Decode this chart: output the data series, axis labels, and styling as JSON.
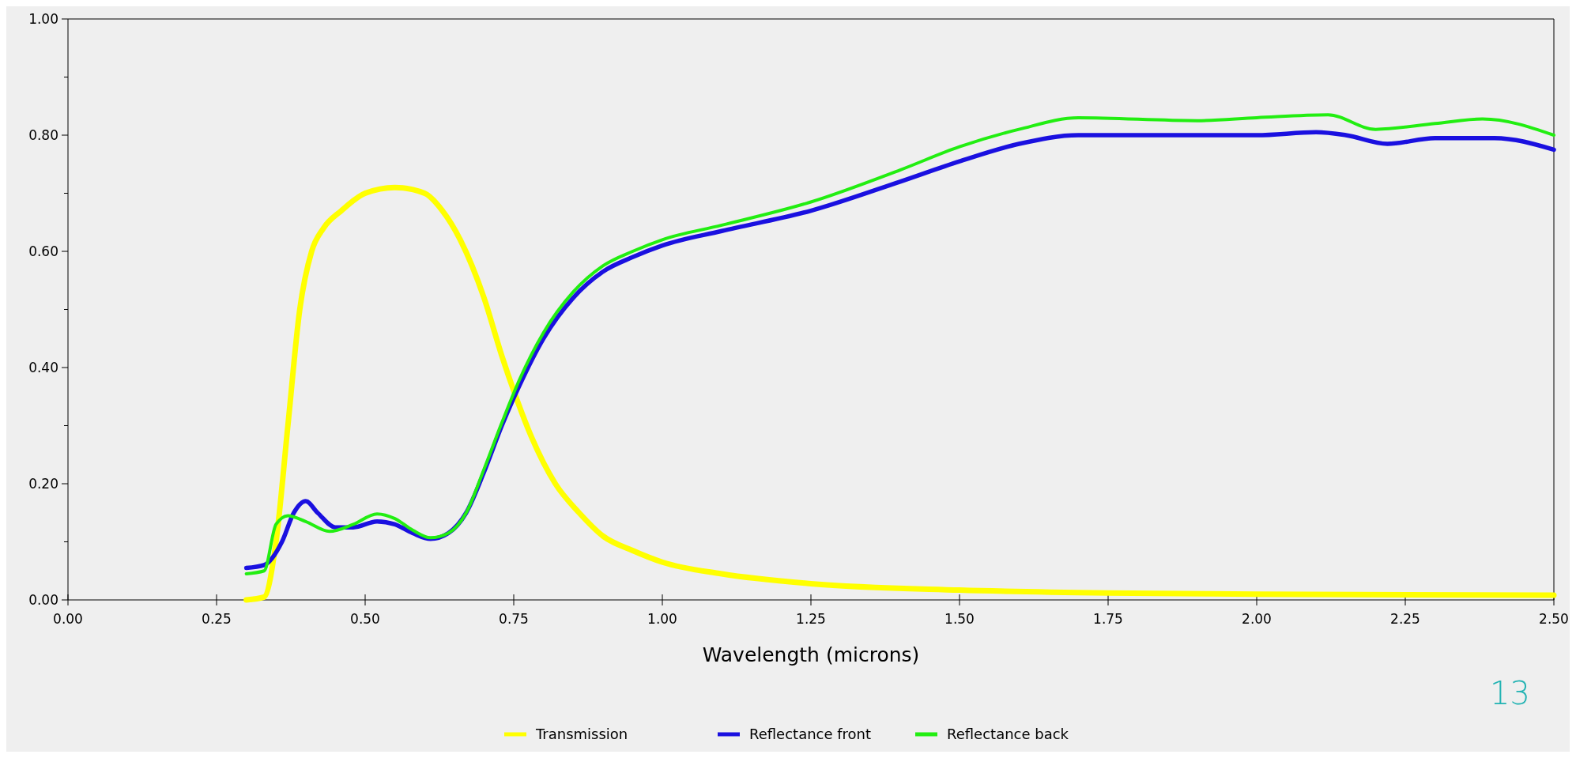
{
  "chart_data": {
    "type": "line",
    "xlabel": "Wavelength (microns)",
    "xlim": [
      0,
      2.5
    ],
    "xticks": [
      {
        "value": 0,
        "label": "0.00"
      },
      {
        "value": 0.25,
        "label": "0.25"
      },
      {
        "value": 0.5,
        "label": "0.50"
      },
      {
        "value": 0.75,
        "label": "0.75"
      },
      {
        "value": 1,
        "label": "1.00"
      },
      {
        "value": 1.25,
        "label": "1.25"
      },
      {
        "value": 1.5,
        "label": "1.50"
      },
      {
        "value": 1.75,
        "label": "1.75"
      },
      {
        "value": 2,
        "label": "2.00"
      },
      {
        "value": 2.25,
        "label": "2.25"
      },
      {
        "value": 2.5,
        "label": "2.50"
      }
    ],
    "ylim": [
      0,
      1
    ],
    "yticks": [
      {
        "value": 0,
        "label": "0.00"
      },
      {
        "value": 0.1,
        "label": null
      },
      {
        "value": 0.2,
        "label": "0.20"
      },
      {
        "value": 0.3,
        "label": null
      },
      {
        "value": 0.4,
        "label": "0.40"
      },
      {
        "value": 0.5,
        "label": null
      },
      {
        "value": 0.6,
        "label": "0.60"
      },
      {
        "value": 0.7,
        "label": null
      },
      {
        "value": 0.8,
        "label": "0.80"
      },
      {
        "value": 0.9,
        "label": null
      },
      {
        "value": 1,
        "label": "1.00"
      }
    ],
    "grid": false,
    "legend": "bottom",
    "marker": "none",
    "line_style": "solid",
    "annotations": [
      "13"
    ],
    "series": [
      {
        "name": "Transmission",
        "color": "#ffff00",
        "x": [
          0.3,
          0.33,
          0.35,
          0.37,
          0.39,
          0.41,
          0.43,
          0.46,
          0.5,
          0.55,
          0.6,
          0.63,
          0.66,
          0.7,
          0.73,
          0.75,
          0.78,
          0.82,
          0.86,
          0.9,
          0.95,
          1,
          1.1,
          1.25,
          1.5,
          1.75,
          2,
          2.5
        ],
        "values": [
          0,
          0.005,
          0.1,
          0.3,
          0.5,
          0.6,
          0.64,
          0.67,
          0.7,
          0.71,
          0.7,
          0.67,
          0.62,
          0.52,
          0.42,
          0.36,
          0.28,
          0.2,
          0.15,
          0.11,
          0.085,
          0.065,
          0.045,
          0.028,
          0.017,
          0.012,
          0.01,
          0.008
        ]
      },
      {
        "name": "Reflectance front",
        "color": "#1a10e0",
        "x": [
          0.3,
          0.33,
          0.36,
          0.38,
          0.4,
          0.42,
          0.45,
          0.48,
          0.52,
          0.55,
          0.58,
          0.61,
          0.64,
          0.67,
          0.7,
          0.73,
          0.76,
          0.8,
          0.85,
          0.9,
          0.95,
          1,
          1.1,
          1.25,
          1.4,
          1.5,
          1.6,
          1.7,
          2,
          2.1,
          2.15,
          2.22,
          2.3,
          2.4,
          2.5
        ],
        "values": [
          0.055,
          0.06,
          0.1,
          0.15,
          0.17,
          0.15,
          0.125,
          0.125,
          0.135,
          0.13,
          0.115,
          0.105,
          0.115,
          0.15,
          0.22,
          0.3,
          0.37,
          0.45,
          0.52,
          0.565,
          0.59,
          0.61,
          0.635,
          0.67,
          0.72,
          0.755,
          0.785,
          0.8,
          0.8,
          0.805,
          0.8,
          0.785,
          0.795,
          0.795,
          0.775
        ]
      },
      {
        "name": "Reflectance back",
        "color": "#22ee11",
        "x": [
          0.3,
          0.33,
          0.35,
          0.37,
          0.4,
          0.44,
          0.48,
          0.52,
          0.55,
          0.58,
          0.61,
          0.64,
          0.67,
          0.7,
          0.73,
          0.76,
          0.8,
          0.85,
          0.9,
          0.95,
          1,
          1.1,
          1.25,
          1.4,
          1.5,
          1.6,
          1.7,
          1.9,
          2,
          2.12,
          2.2,
          2.3,
          2.38,
          2.5
        ],
        "values": [
          0.045,
          0.05,
          0.13,
          0.145,
          0.135,
          0.118,
          0.13,
          0.148,
          0.14,
          0.12,
          0.107,
          0.115,
          0.15,
          0.225,
          0.305,
          0.38,
          0.46,
          0.53,
          0.575,
          0.6,
          0.62,
          0.645,
          0.685,
          0.74,
          0.78,
          0.81,
          0.83,
          0.825,
          0.83,
          0.835,
          0.81,
          0.82,
          0.828,
          0.8
        ]
      }
    ]
  }
}
